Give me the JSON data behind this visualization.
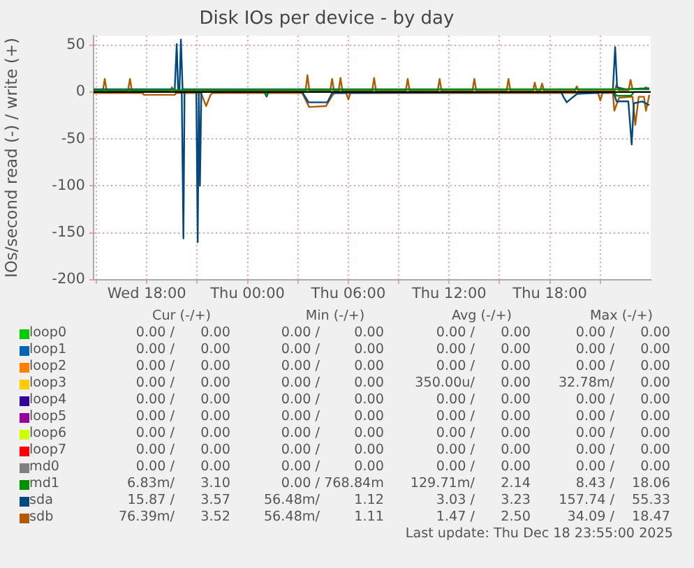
{
  "chart_data": {
    "type": "line",
    "title": "Disk IOs per device - by day",
    "ylabel": "IOs/second read (-) / write (+)",
    "xlim": [
      "2025-12-17T14:50",
      "2025-12-19T00:00"
    ],
    "xticks": [
      {
        "value": "2025-12-17T15:00",
        "label": null
      },
      {
        "value": "2025-12-17T18:00",
        "label": "Wed 18:00"
      },
      {
        "value": "2025-12-17T21:00",
        "label": null
      },
      {
        "value": "2025-12-18T00:00",
        "label": "Thu 00:00"
      },
      {
        "value": "2025-12-18T03:00",
        "label": null
      },
      {
        "value": "2025-12-18T06:00",
        "label": "Thu 06:00"
      },
      {
        "value": "2025-12-18T09:00",
        "label": null
      },
      {
        "value": "2025-12-18T12:00",
        "label": "Thu 12:00"
      },
      {
        "value": "2025-12-18T15:00",
        "label": null
      },
      {
        "value": "2025-12-18T18:00",
        "label": "Thu 18:00"
      },
      {
        "value": "2025-12-18T21:00",
        "label": null
      }
    ],
    "ylim": [
      -200,
      60
    ],
    "yticks": [
      -200,
      -150,
      -100,
      -50,
      0,
      50
    ],
    "grid": true,
    "legend": "bottom",
    "marker": "none",
    "ref_lines": [
      {
        "axis": "y",
        "value": 0,
        "color": "#000000"
      }
    ],
    "x": [
      "2025-12-17T14:50",
      "2025-12-18T23:55"
    ],
    "series": [
      {
        "name": "loop0",
        "color": "#00cc00",
        "values": [
          null,
          null
        ]
      },
      {
        "name": "loop1",
        "color": "#0066b3",
        "values": [
          null,
          null
        ]
      },
      {
        "name": "loop2",
        "color": "#ff8000",
        "values": [
          null,
          null
        ]
      },
      {
        "name": "loop3",
        "color": "#ffcc00",
        "values": [
          null,
          null
        ]
      },
      {
        "name": "loop4",
        "color": "#330099",
        "values": [
          null,
          null
        ]
      },
      {
        "name": "loop5",
        "color": "#990099",
        "values": [
          null,
          null
        ]
      },
      {
        "name": "loop6",
        "color": "#ccff00",
        "values": [
          null,
          null
        ]
      },
      {
        "name": "loop7",
        "color": "#ff0000",
        "values": [
          null,
          null
        ]
      },
      {
        "name": "md0",
        "color": "#808080",
        "values": [
          null,
          null
        ]
      },
      {
        "name": "md1",
        "color": "#008f00",
        "values": [
          2,
          3
        ]
      },
      {
        "color": "#008f00",
        "x": [
          "2025-12-17T14:50",
          "2025-12-18T01:00",
          "2025-12-18T01:08",
          "2025-12-18T01:15",
          "2025-12-18T21:50",
          "2025-12-18T21:58",
          "2025-12-18T22:50",
          "2025-12-18T23:00",
          "2025-12-18T23:55"
        ],
        "values": [
          0,
          0,
          -4,
          0,
          0,
          -4,
          -4,
          0,
          0
        ]
      },
      {
        "name": "sda",
        "color": "#00487d",
        "x": [
          "2025-12-17T14:50",
          "2025-12-17T19:40",
          "2025-12-17T19:47",
          "2025-12-17T19:52",
          "2025-12-17T19:57",
          "2025-12-17T20:02",
          "2025-12-17T20:08",
          "2025-12-18T21:45",
          "2025-12-18T21:53",
          "2025-12-18T22:00",
          "2025-12-18T22:30",
          "2025-12-18T23:55"
        ],
        "values": [
          3,
          3,
          51,
          3,
          3,
          56,
          3,
          3,
          48,
          5,
          3,
          4
        ]
      },
      {
        "color": "#00487d",
        "x": [
          "2025-12-17T14:50",
          "2025-12-17T20:05",
          "2025-12-17T20:11",
          "2025-12-17T20:15",
          "2025-12-17T20:57",
          "2025-12-17T21:02",
          "2025-12-17T21:06",
          "2025-12-17T21:10",
          "2025-12-17T21:15",
          "2025-12-18T01:00",
          "2025-12-18T01:08",
          "2025-12-18T01:15",
          "2025-12-18T03:15",
          "2025-12-18T03:38",
          "2025-12-18T04:45",
          "2025-12-18T05:02",
          "2025-12-18T18:40",
          "2025-12-18T18:48",
          "2025-12-18T19:00",
          "2025-12-18T19:20",
          "2025-12-18T19:37",
          "2025-12-18T21:47",
          "2025-12-18T21:58",
          "2025-12-18T22:40",
          "2025-12-18T22:52",
          "2025-12-18T23:00",
          "2025-12-18T23:30",
          "2025-12-18T23:55"
        ],
        "values": [
          0,
          0,
          -156,
          0,
          0,
          -160,
          -2,
          -100,
          0,
          0,
          -5,
          0,
          0,
          -11,
          -11,
          -1,
          0,
          -5,
          -11,
          -6,
          -2,
          0,
          -10,
          -10,
          -56,
          -12,
          -10,
          -14
        ]
      },
      {
        "name": "sdb",
        "color": "#b35a00",
        "x": [
          "2025-12-17T14:50",
          "2025-12-17T15:23",
          "2025-12-17T15:30",
          "2025-12-17T15:37",
          "2025-12-17T16:53",
          "2025-12-17T17:00",
          "2025-12-17T17:07",
          "2025-12-17T19:23",
          "2025-12-17T19:30",
          "2025-12-17T19:37",
          "2025-12-18T03:27",
          "2025-12-18T03:34",
          "2025-12-18T03:41",
          "2025-12-18T04:55",
          "2025-12-18T05:02",
          "2025-12-18T05:09",
          "2025-12-18T05:25",
          "2025-12-18T05:32",
          "2025-12-18T05:39",
          "2025-12-18T07:25",
          "2025-12-18T07:32",
          "2025-12-18T07:39",
          "2025-12-18T09:25",
          "2025-12-18T09:32",
          "2025-12-18T09:39",
          "2025-12-18T11:19",
          "2025-12-18T11:26",
          "2025-12-18T11:33",
          "2025-12-18T13:23",
          "2025-12-18T13:30",
          "2025-12-18T13:37",
          "2025-12-18T15:25",
          "2025-12-18T15:32",
          "2025-12-18T15:39",
          "2025-12-18T16:59",
          "2025-12-18T17:06",
          "2025-12-18T17:13",
          "2025-12-18T17:25",
          "2025-12-18T17:32",
          "2025-12-18T17:39",
          "2025-12-18T19:29",
          "2025-12-18T19:36",
          "2025-12-18T19:43",
          "2025-12-18T21:51",
          "2025-12-18T21:58",
          "2025-12-18T22:05",
          "2025-12-18T22:41",
          "2025-12-18T22:48",
          "2025-12-18T22:55",
          "2025-12-18T23:15",
          "2025-12-18T23:22",
          "2025-12-18T23:29",
          "2025-12-18T23:36",
          "2025-12-18T23:43",
          "2025-12-18T23:50",
          "2025-12-18T23:55"
        ],
        "values": [
          1,
          1,
          14,
          1,
          1,
          14,
          1,
          1,
          5,
          1,
          1,
          18,
          1,
          1,
          14,
          1,
          1,
          15,
          1,
          1,
          15,
          1,
          1,
          14,
          1,
          1,
          14,
          1,
          1,
          14,
          1,
          1,
          14,
          1,
          1,
          10,
          1,
          1,
          9,
          1,
          1,
          6,
          1,
          1,
          8,
          2,
          2,
          13,
          3,
          3,
          4,
          3,
          3,
          5,
          3,
          3
        ]
      },
      {
        "color": "#b35a00",
        "x": [
          "2025-12-17T14:50",
          "2025-12-17T17:45",
          "2025-12-17T17:50",
          "2025-12-17T19:40",
          "2025-12-17T19:45",
          "2025-12-17T21:10",
          "2025-12-17T21:15",
          "2025-12-17T21:32",
          "2025-12-17T21:48",
          "2025-12-17T21:55",
          "2025-12-18T03:15",
          "2025-12-18T03:22",
          "2025-12-18T03:40",
          "2025-12-18T04:40",
          "2025-12-18T05:00",
          "2025-12-18T05:10",
          "2025-12-18T05:52",
          "2025-12-18T06:00",
          "2025-12-18T06:08",
          "2025-12-18T20:52",
          "2025-12-18T21:00",
          "2025-12-18T21:08",
          "2025-12-18T21:45",
          "2025-12-18T21:50",
          "2025-12-18T22:07",
          "2025-12-18T22:55",
          "2025-12-18T23:05",
          "2025-12-18T23:17",
          "2025-12-18T23:36",
          "2025-12-18T23:43",
          "2025-12-18T23:55"
        ],
        "values": [
          -1,
          -1,
          -3,
          -3,
          -1,
          -1,
          -2,
          -15,
          -3,
          -1,
          -1,
          -5,
          -16,
          -15,
          -5,
          -1,
          -1,
          -8,
          -1,
          -1,
          -9,
          -1,
          -1,
          -20,
          -6,
          -5,
          -35,
          -5,
          -5,
          -20,
          -3
        ]
      }
    ],
    "annotations": [
      "Cur (-/+)",
      "Min (-/+)",
      "Avg (-/+)",
      "Max (-/+)",
      "0.00 / 0.00",
      "0.00 / 0.00",
      "0.00 / 0.00",
      "0.00 / 0.00",
      "0.00 / 0.00",
      "0.00 / 0.00",
      "0.00 / 0.00",
      "0.00 / 0.00",
      "0.00 / 0.00",
      "0.00 / 0.00",
      "0.00 / 0.00",
      "0.00 / 0.00",
      "0.00 / 0.00",
      "0.00 / 0.00",
      "350.00u/ 0.00",
      "32.78m/ 0.00",
      "0.00 / 0.00",
      "0.00 / 0.00",
      "0.00 / 0.00",
      "0.00 / 0.00",
      "0.00 / 0.00",
      "0.00 / 0.00",
      "0.00 / 0.00",
      "0.00 / 0.00",
      "0.00 / 0.00",
      "0.00 / 0.00",
      "0.00 / 0.00",
      "0.00 / 0.00",
      "0.00 / 0.00",
      "0.00 / 0.00",
      "0.00 / 0.00",
      "0.00 / 0.00",
      "0.00 / 0.00",
      "0.00 / 0.00",
      "0.00 / 0.00",
      "0.00 / 0.00",
      "6.83m/ 3.10",
      "0.00 / 768.84m",
      "129.71m/ 2.14",
      "8.43 / 18.06",
      "15.87 / 3.57",
      "56.48m/ 1.12",
      "3.03 / 3.23",
      "157.74 / 55.33",
      "76.39m/ 3.52",
      "56.48m/ 1.11",
      "1.47 / 2.50",
      "34.09 / 18.47",
      "Last update: Thu Dec 18 23:55:00 2025"
    ]
  }
}
